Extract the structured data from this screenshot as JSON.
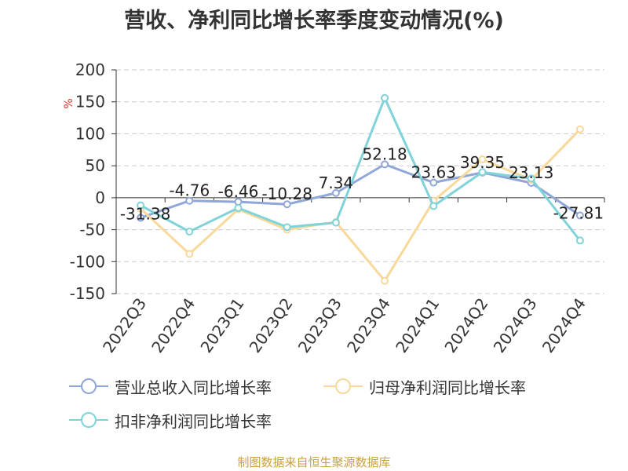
{
  "header": {
    "title": "营收、净利同比增长率季度变动情况(%)"
  },
  "footer": {
    "source": "制图数据来自恒生聚源数据库"
  },
  "chart_data": {
    "type": "line",
    "ylabel": "%",
    "ylim": [
      -150,
      200
    ],
    "yticks": [
      200,
      150,
      100,
      50,
      0,
      -50,
      -100,
      -150
    ],
    "grid": true,
    "legend_position": "bottom",
    "categories": [
      "2022Q3",
      "2022Q4",
      "2023Q1",
      "2023Q2",
      "2023Q3",
      "2023Q4",
      "2024Q1",
      "2024Q2",
      "2024Q3",
      "2024Q4"
    ],
    "series": [
      {
        "name": "营业总收入同比增长率",
        "color": "#8fa6d8",
        "values": [
          -31.38,
          -4.76,
          -6.46,
          -10.28,
          7.34,
          52.18,
          23.63,
          39.35,
          23.13,
          -27.81
        ],
        "labels": [
          "-31.38",
          "-4.76",
          "-6.46",
          "-10.28",
          "7.34",
          "52.18",
          "23.63",
          "39.35",
          "23.13",
          "-27.81"
        ]
      },
      {
        "name": "归母净利润同比增长率",
        "color": "#f8d99a",
        "values": [
          -17,
          -88,
          -18,
          -50,
          -38,
          -130,
          -5,
          60,
          28,
          107
        ]
      },
      {
        "name": "扣非净利润同比增长率",
        "color": "#7fd3d9",
        "values": [
          -12,
          -53,
          -16,
          -46,
          -39,
          156,
          -13,
          40,
          30,
          -67
        ]
      }
    ]
  }
}
